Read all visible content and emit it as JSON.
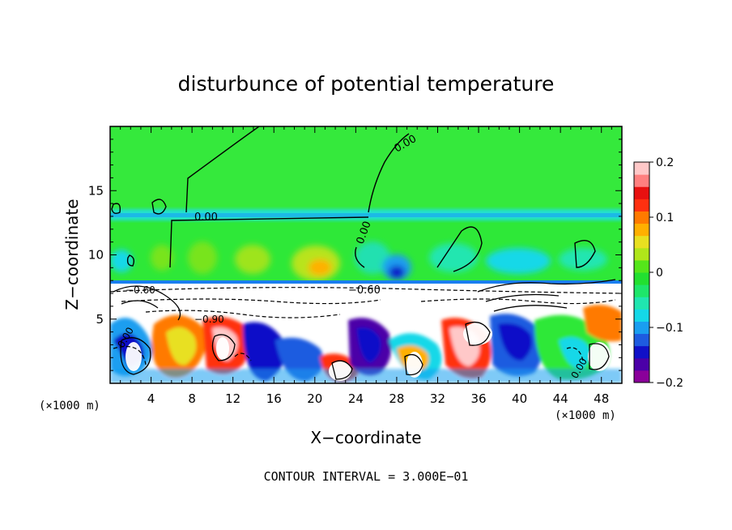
{
  "chart_data": {
    "type": "heatmap",
    "title": "disturbunce of potential temperature",
    "xlabel": "X−coordinate",
    "ylabel": "Z−coordinate",
    "x_unit_left": "(×1000 m)",
    "x_unit_right": "(×1000 m)",
    "xlim": [
      0,
      50
    ],
    "ylim": [
      0,
      20
    ],
    "x_ticks": [
      4,
      8,
      12,
      16,
      20,
      24,
      28,
      32,
      36,
      40,
      44,
      48
    ],
    "y_ticks": [
      5,
      10,
      15
    ],
    "colorbar": {
      "range": [
        -0.2,
        0.2
      ],
      "tick_values": [
        0.2,
        0.1,
        0,
        -0.1,
        -0.2
      ],
      "tick_labels": [
        "0.2",
        "0.1",
        "0",
        "−0.1",
        "−0.2"
      ],
      "colors": [
        "#8a009a",
        "#4b00a8",
        "#1010c8",
        "#1e5be0",
        "#1a9ef0",
        "#14d8e8",
        "#20e6b0",
        "#1ee66a",
        "#22e030",
        "#55e61a",
        "#b0e61a",
        "#e8e020",
        "#ffb000",
        "#ff7a00",
        "#ff3010",
        "#e81010",
        "#ff8080",
        "#ffc8c8"
      ]
    },
    "contour_labels": [
      "0.00",
      "0.00",
      "0.00",
      "−0.60",
      "−0.60",
      "−0.90",
      "0.00",
      "0.00"
    ],
    "footer": "CONTOUR INTERVAL = 3.000E−01",
    "grid": false
  }
}
